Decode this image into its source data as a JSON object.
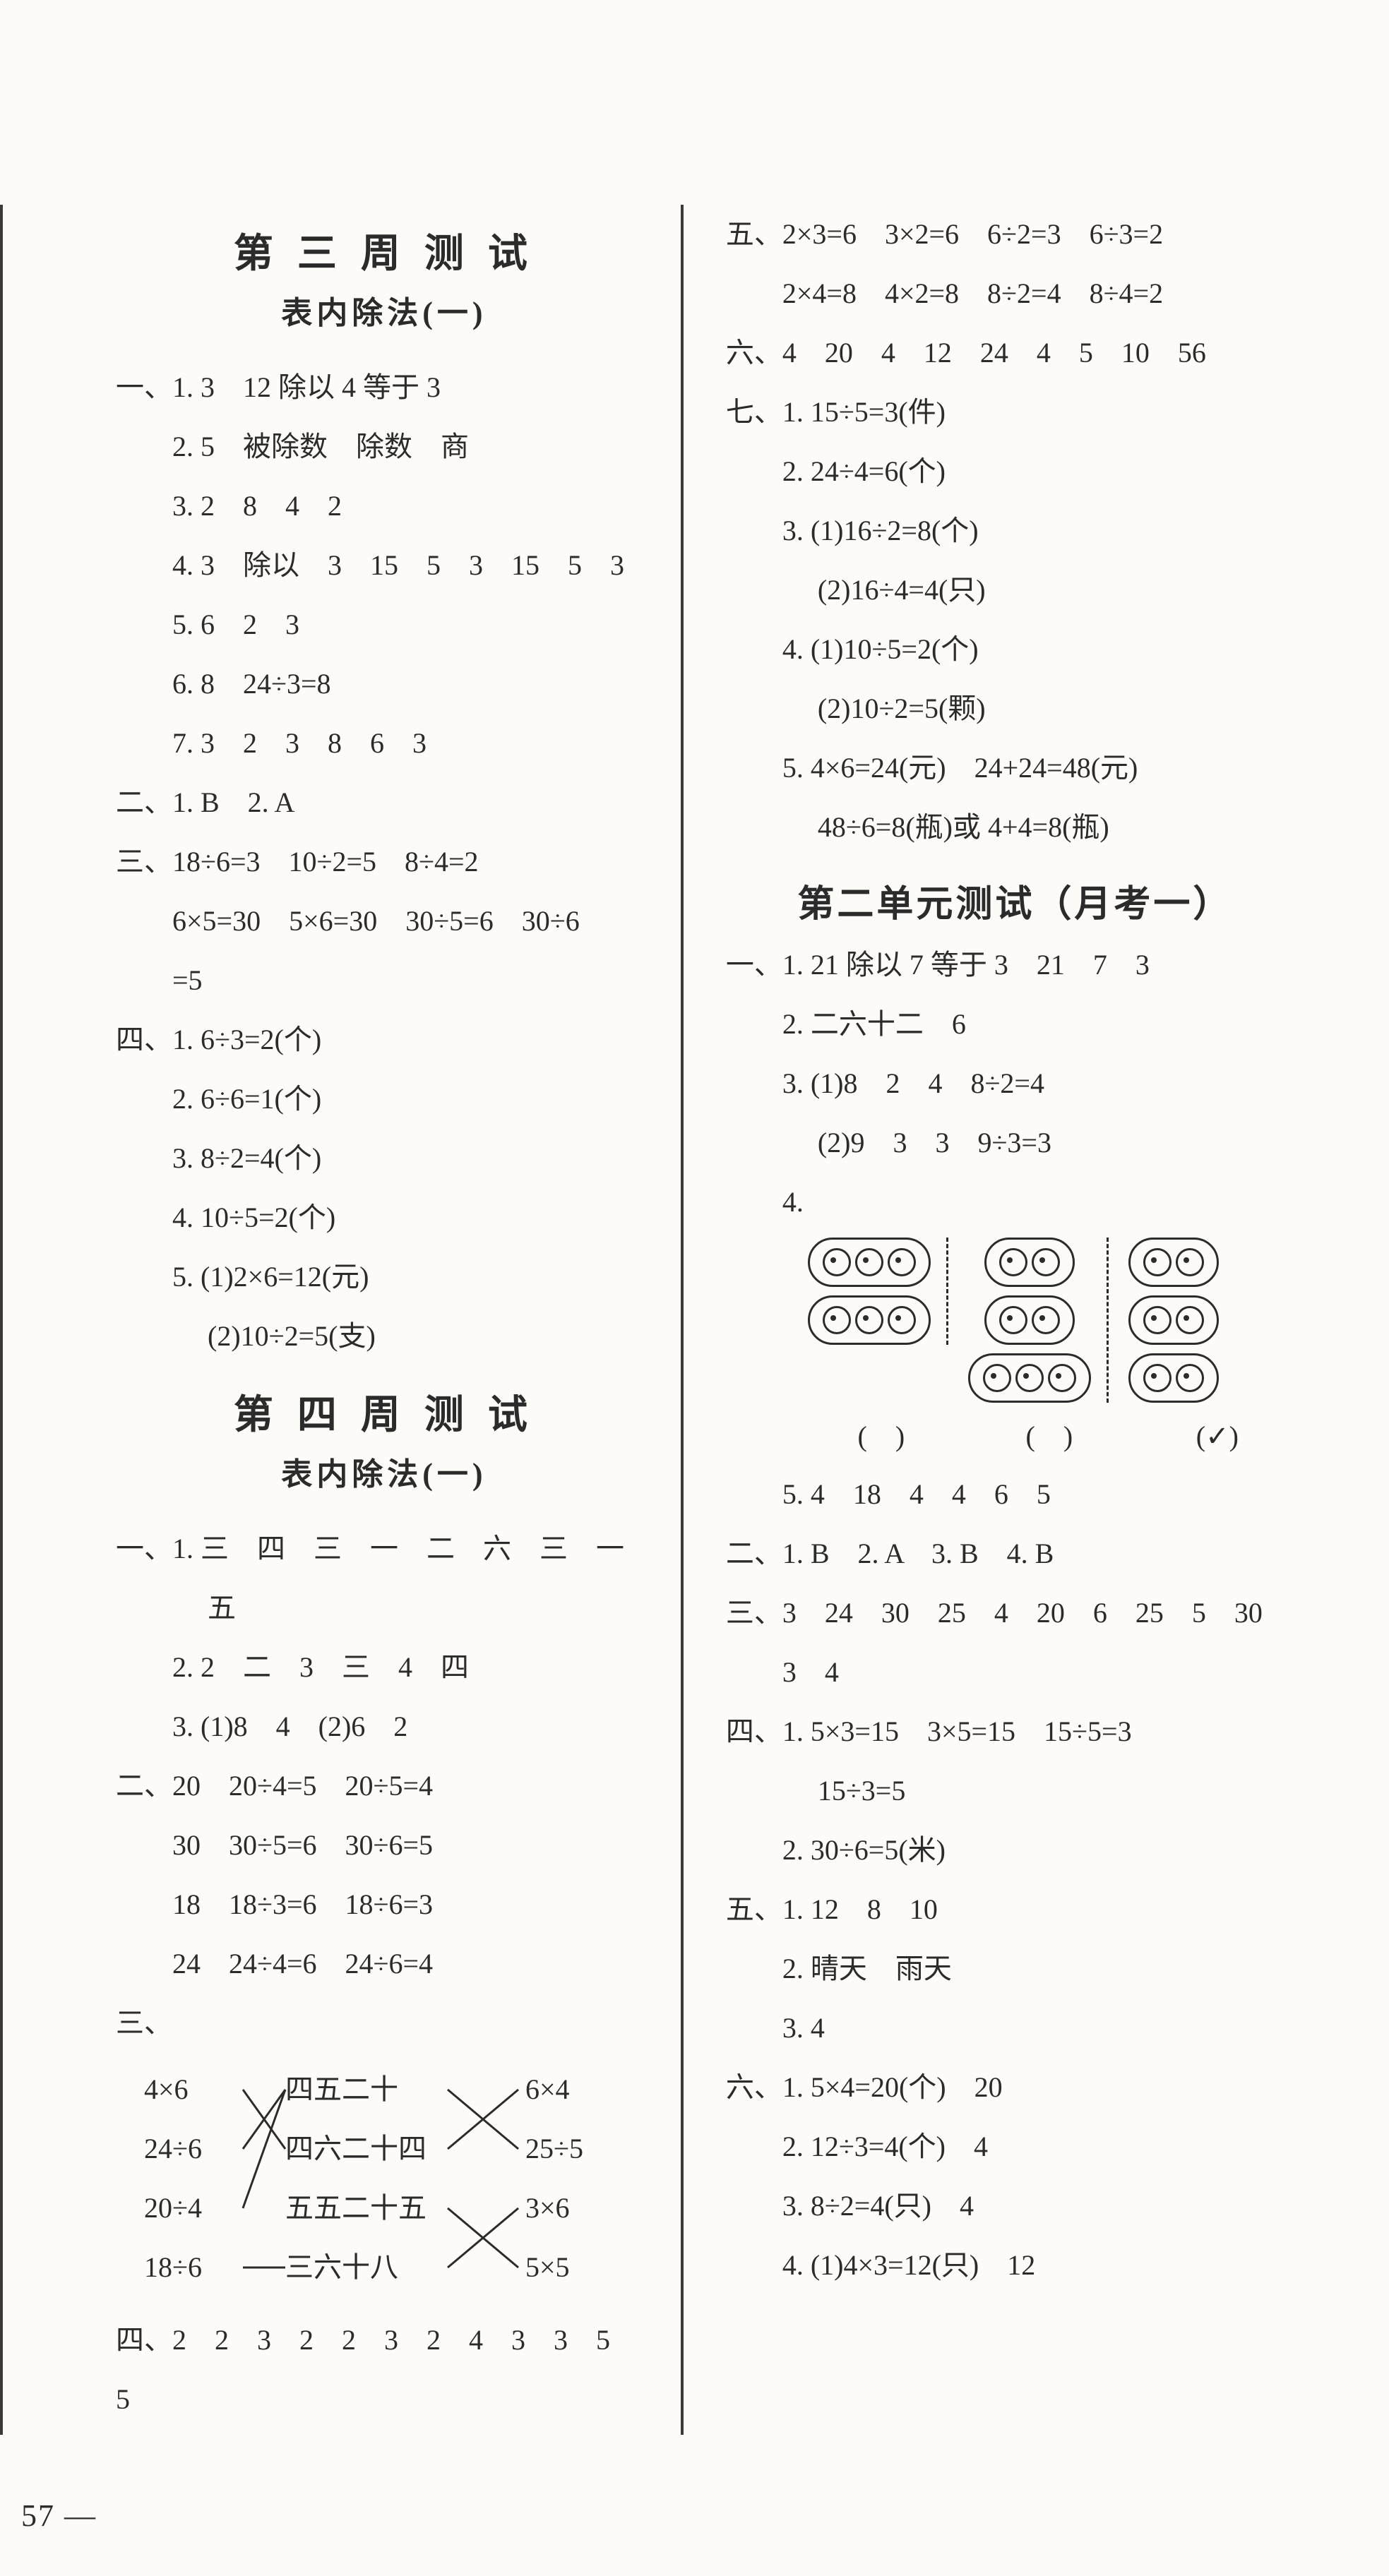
{
  "pageNumber": "57  —",
  "left": {
    "week3": {
      "title": "第 三 周 测 试",
      "subtitle": "表内除法(一)",
      "lines": [
        "一、1. 3　12 除以 4 等于 3",
        "　　2. 5　被除数　除数　商",
        "　　3. 2　8　4　2",
        "　　4. 3　除以　3　15　5　3　15　5　3",
        "　　5. 6　2　3",
        "　　6. 8　24÷3=8",
        "　　7. 3　2　3　8　6　3",
        "二、1. B　2. A",
        "三、18÷6=3　10÷2=5　8÷4=2",
        "　　6×5=30　5×6=30　30÷5=6　30÷6",
        "　　=5",
        "四、1. 6÷3=2(个)",
        "　　2. 6÷6=1(个)",
        "　　3. 8÷2=4(个)",
        "　　4. 10÷5=2(个)",
        "　　5. (1)2×6=12(元)",
        "　　　 (2)10÷2=5(支)"
      ]
    },
    "week4": {
      "title": "第 四 周 测 试",
      "subtitle": "表内除法(一)",
      "lines1": [
        "一、1. 三　四　三　一　二　六　三　一",
        "　　　 五",
        "　　2. 2　二　3　三　4　四",
        "　　3. (1)8　4　(2)6　2",
        "二、20　20÷4=5　20÷5=4",
        "　　30　30÷5=6　30÷6=5",
        "　　18　18÷3=6　18÷6=3",
        "　　24　24÷4=6　24÷6=4"
      ],
      "match": {
        "prefix": "三、",
        "left": [
          "4×6",
          "24÷6",
          "20÷4",
          "18÷6"
        ],
        "mid": [
          "四五二十",
          "四六二十四",
          "五五二十五",
          "三六十八"
        ],
        "right": [
          "6×4",
          "25÷5",
          "3×6",
          "5×5"
        ]
      },
      "lines2": [
        "四、2　2　3　2　2　3　2　4　3　3　5　5"
      ]
    }
  },
  "right": {
    "top": {
      "lines": [
        "五、2×3=6　3×2=6　6÷2=3　6÷3=2",
        "　　2×4=8　4×2=8　8÷2=4　8÷4=2",
        "六、4　20　4　12　24　4　5　10　56",
        "七、1. 15÷5=3(件)",
        "　　2. 24÷4=6(个)",
        "　　3. (1)16÷2=8(个)",
        "　　　 (2)16÷4=4(只)",
        "　　4. (1)10÷5=2(个)",
        "　　　 (2)10÷2=5(颗)",
        "　　5. 4×6=24(元)　24+24=48(元)",
        "　　　 48÷6=8(瓶)或 4+4=8(瓶)"
      ]
    },
    "unit2": {
      "title": "第二单元测试（月考一）",
      "lines1": [
        "一、1. 21 除以 7 等于 3　21　7　3",
        "　　2. 二六十二　6",
        "　　3. (1)8　2　4　8÷2=4",
        "　　　 (2)9　3　3　9÷3=3",
        "　　4."
      ],
      "ovals": {
        "groups": [
          {
            "rows": [
              3,
              3
            ],
            "sep": true
          },
          {
            "rows": [
              2,
              2,
              3
            ],
            "sep": true
          },
          {
            "rows": [
              2,
              2,
              2
            ],
            "sep": false
          }
        ],
        "parens": [
          "(　)",
          "(　)",
          "(✓)"
        ]
      },
      "lines2": [
        "　　5. 4　18　4　4　6　5",
        "二、1. B　2. A　3. B　4. B",
        "三、3　24　30　25　4　20　6　25　5　30",
        "　　3　4",
        "四、1. 5×3=15　3×5=15　15÷5=3",
        "　　　 15÷3=5",
        "　　2. 30÷6=5(米)",
        "五、1. 12　8　10",
        "　　2. 晴天　雨天",
        "　　3. 4",
        "六、1. 5×4=20(个)　20",
        "　　2. 12÷3=4(个)　4",
        "　　3. 8÷2=4(只)　4",
        "　　4. (1)4×3=12(只)　12"
      ]
    }
  }
}
